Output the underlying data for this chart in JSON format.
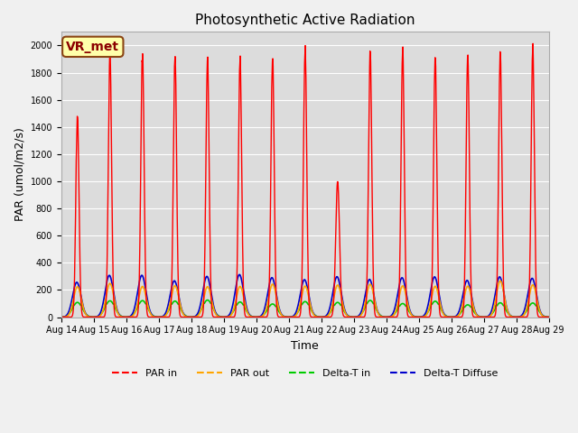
{
  "title": "Photosynthetic Active Radiation",
  "xlabel": "Time",
  "ylabel": "PAR (umol/m2/s)",
  "ylim": [
    0,
    2100
  ],
  "yticks": [
    0,
    200,
    400,
    600,
    800,
    1000,
    1200,
    1400,
    1600,
    1800,
    2000
  ],
  "bg_color": "#dcdcdc",
  "fig_color": "#f0f0f0",
  "legend_labels": [
    "PAR in",
    "PAR out",
    "Delta-T in",
    "Delta-T Diffuse"
  ],
  "line_colors": [
    "#ff0000",
    "#ffa500",
    "#00cc00",
    "#0000cc"
  ],
  "annotation_text": "VR_met",
  "annotation_bg": "#ffffaa",
  "annotation_border": "#8B4513",
  "annotation_text_color": "#8B0000",
  "days": 15,
  "start_day": 14,
  "points_per_day": 96,
  "cloudy_day": 8,
  "cloudy_peak": 1000
}
